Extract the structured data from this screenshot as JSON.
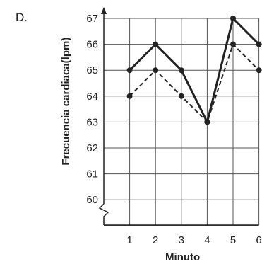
{
  "option_letter": "D.",
  "chart_data": {
    "type": "line",
    "title": "",
    "xlabel": "Minuto",
    "ylabel": "Frecuencia cardiaca(lpm)",
    "x": [
      1,
      2,
      3,
      4,
      5,
      6
    ],
    "xlim": [
      0,
      6
    ],
    "ylim": [
      59,
      67
    ],
    "y_ticks": [
      60,
      61,
      62,
      63,
      64,
      65,
      66,
      67
    ],
    "y_axis_break": true,
    "grid": true,
    "series": [
      {
        "style": "solid",
        "color": "#222222",
        "values": [
          65,
          66,
          65,
          63,
          67,
          66
        ]
      },
      {
        "style": "dashed",
        "color": "#222222",
        "values": [
          64,
          65,
          64,
          63,
          66,
          65
        ]
      }
    ]
  }
}
